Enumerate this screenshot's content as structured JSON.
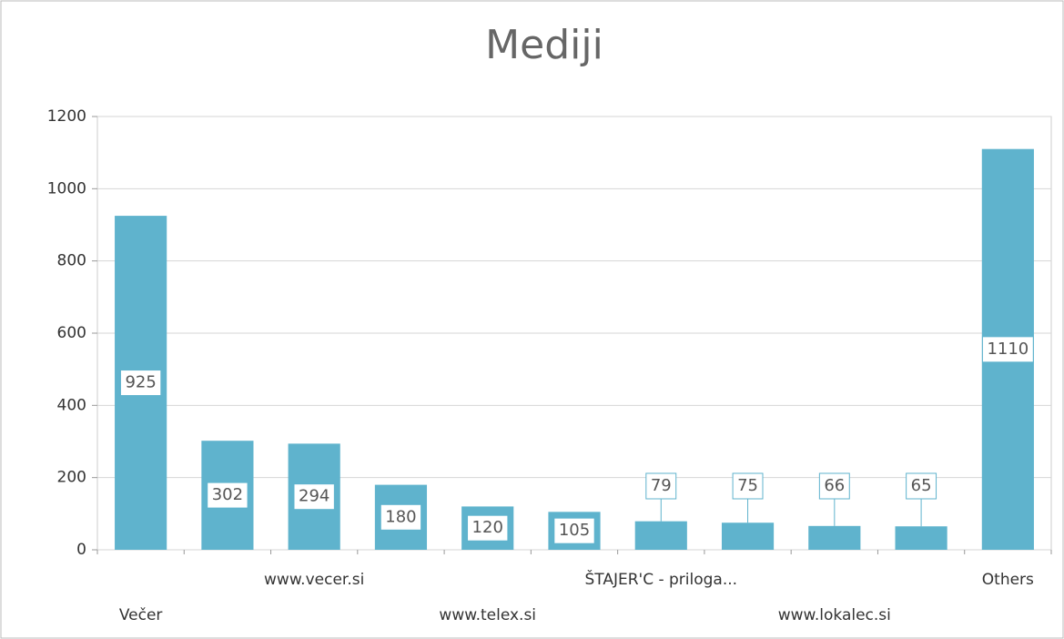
{
  "chart_data": {
    "type": "bar",
    "title": "Mediji",
    "categories": [
      "Večer",
      null,
      "www.vecer.si",
      null,
      "www.telex.si",
      null,
      "ŠTAJER'C - priloga...",
      null,
      "www.lokalec.si",
      null,
      "Others"
    ],
    "values": [
      925,
      302,
      294,
      180,
      120,
      105,
      79,
      75,
      66,
      65,
      1110
    ],
    "color": "#5fb3cd",
    "ylim": [
      0,
      1200
    ],
    "yticks": [
      0,
      200,
      400,
      600,
      800,
      1000,
      1200
    ],
    "grid": true
  }
}
